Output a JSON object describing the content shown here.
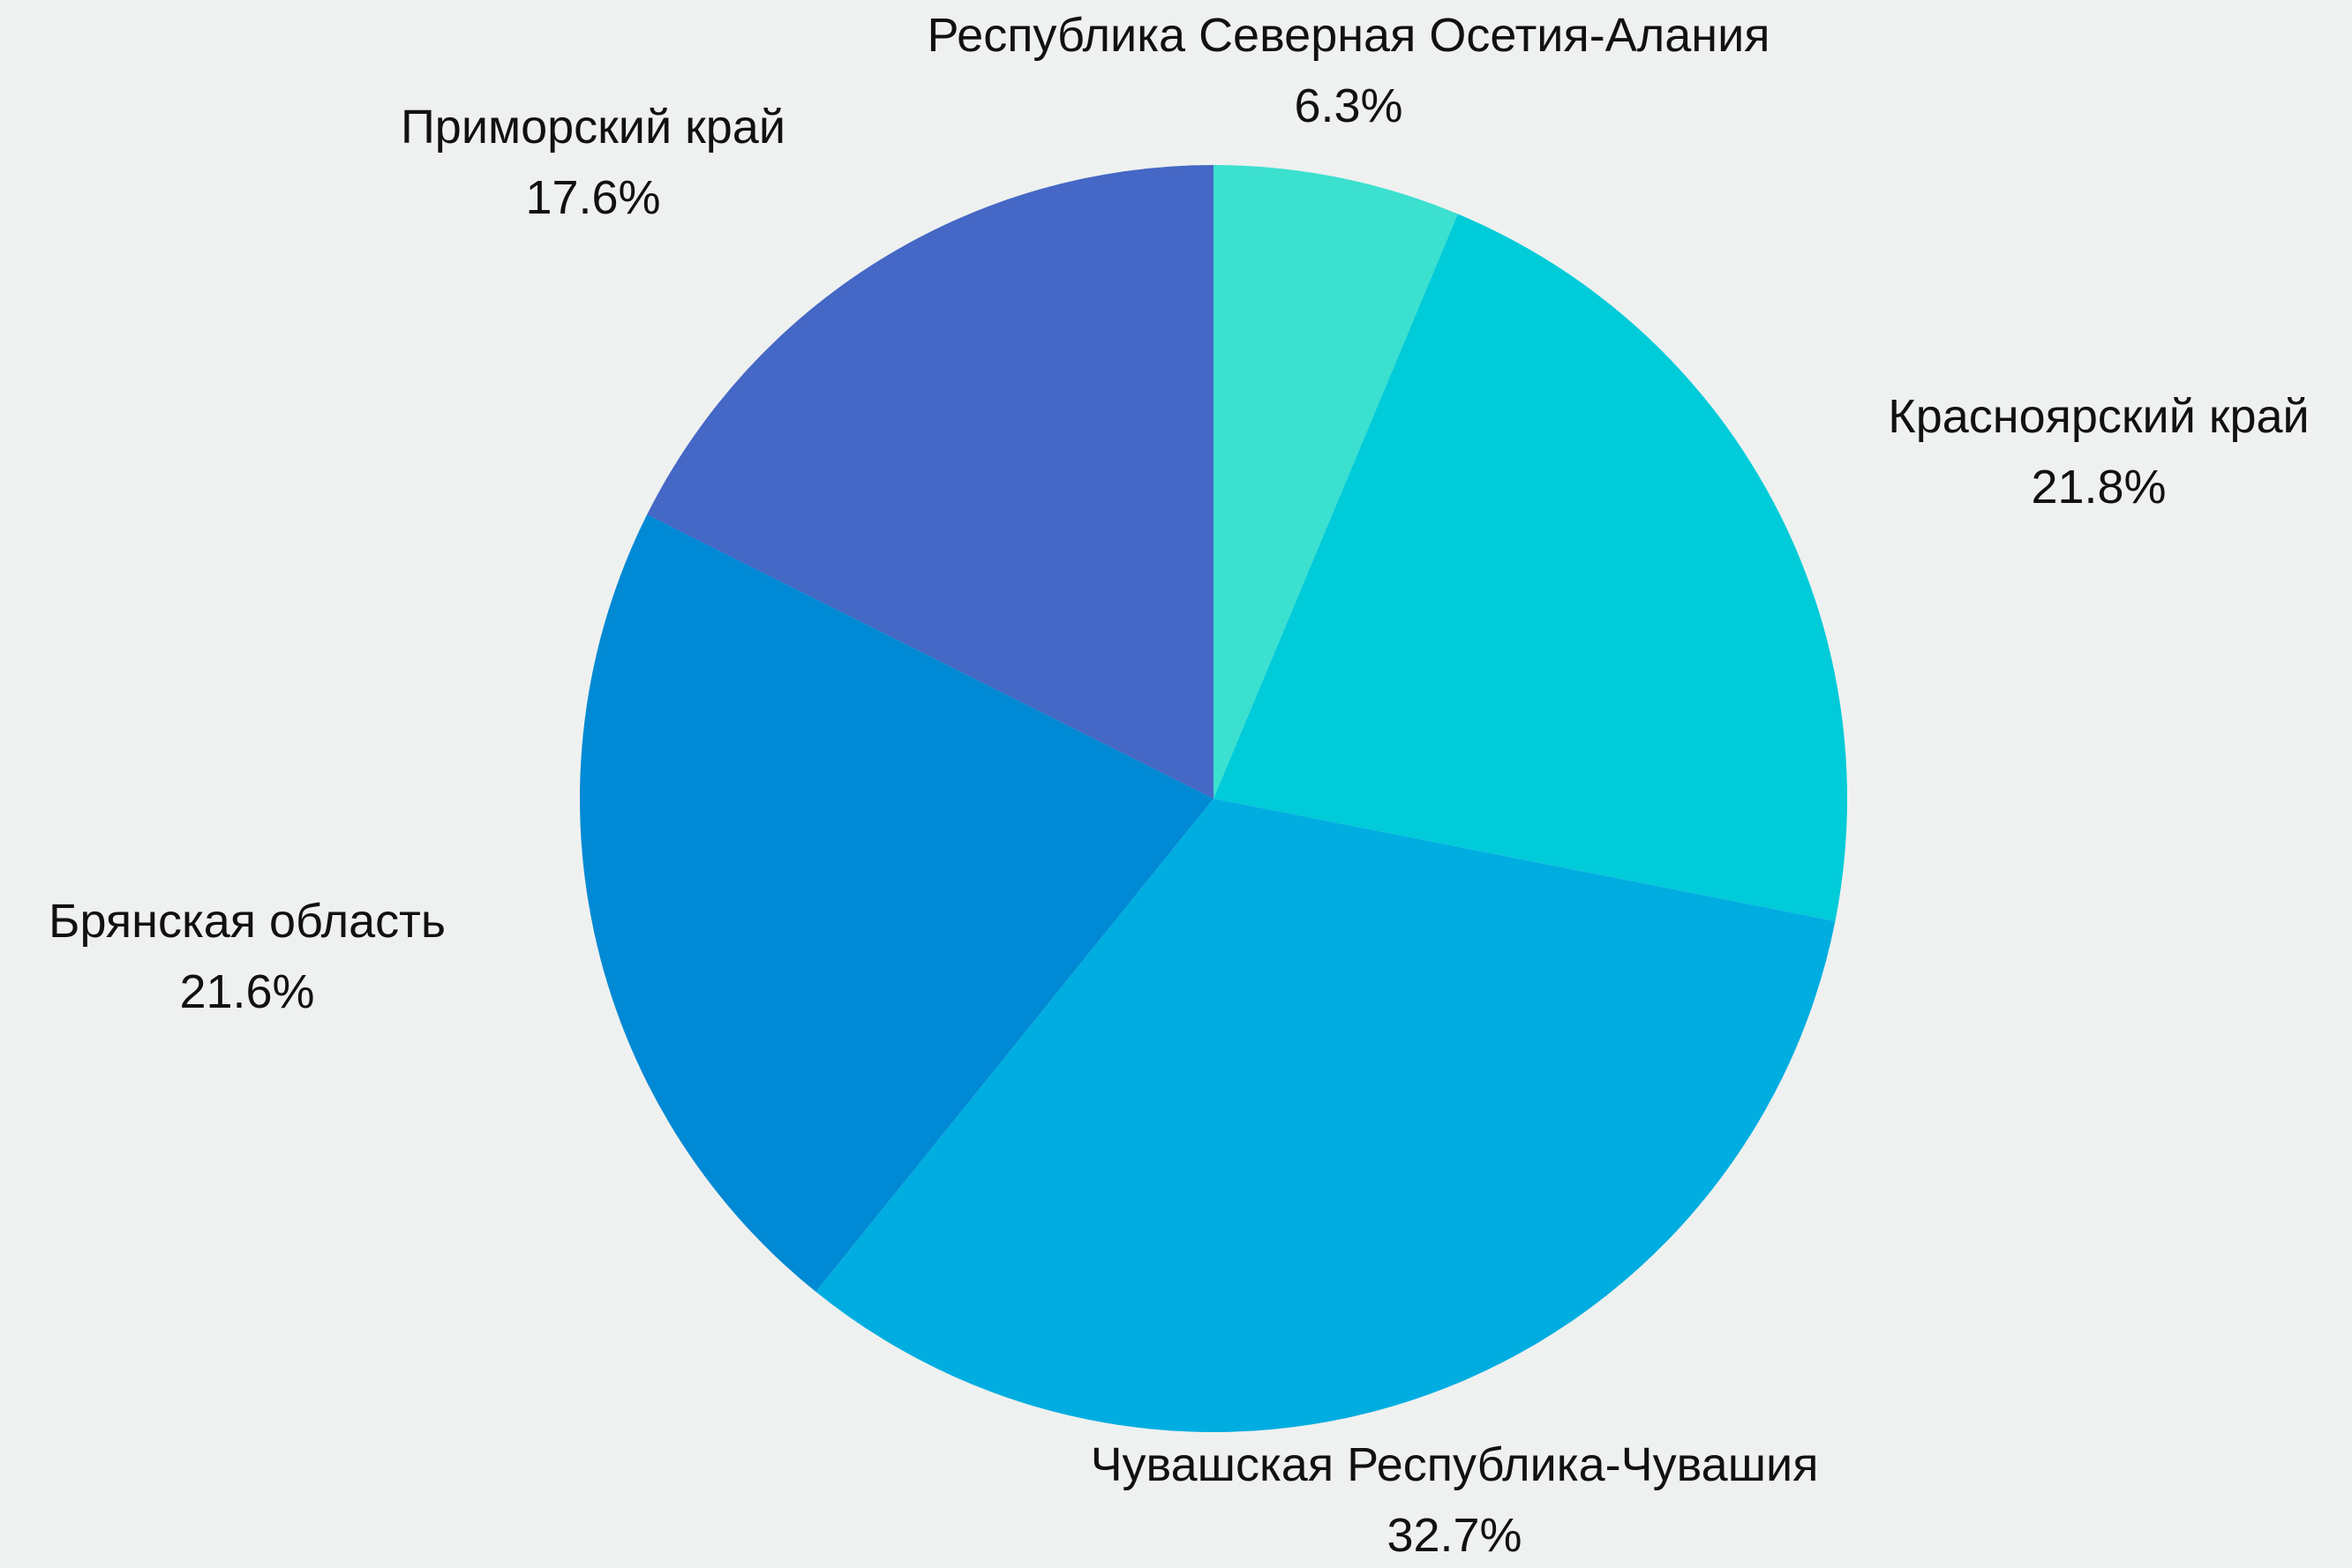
{
  "chart_data": {
    "type": "pie",
    "title": "",
    "slices": [
      {
        "label": "Республика Северная Осетия-Алания",
        "value": 6.3,
        "value_label": "6.3%",
        "color": "#3be0cf"
      },
      {
        "label": "Красноярский край",
        "value": 21.8,
        "value_label": "21.8%",
        "color": "#00cbd9"
      },
      {
        "label": "Чувашская Республика-Чувашия",
        "value": 32.7,
        "value_label": "32.7%",
        "color": "#00ade0"
      },
      {
        "label": "Брянская область",
        "value": 21.6,
        "value_label": "21.6%",
        "color": "#0089d4"
      },
      {
        "label": "Приморский край",
        "value": 17.6,
        "value_label": "17.6%",
        "color": "#4567c5"
      }
    ],
    "start_angle": "12 o'clock",
    "direction": "clockwise",
    "legend": "none",
    "labels_outside": true
  }
}
